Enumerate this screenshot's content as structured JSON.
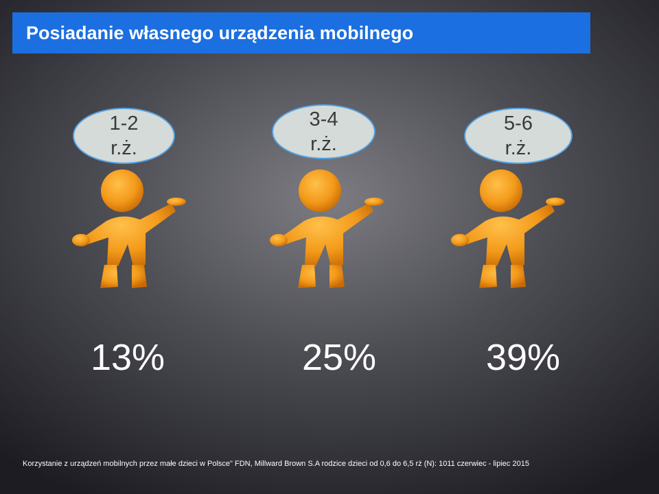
{
  "title": "Posiadanie własnego urządzenia mobilnego",
  "groups": [
    {
      "age_line1": "1-2",
      "age_line2": "r.ż.",
      "percent": "13%"
    },
    {
      "age_line1": "3-4",
      "age_line2": "r.ż.",
      "percent": "25%"
    },
    {
      "age_line1": "5-6",
      "age_line2": "r.ż.",
      "percent": "39%"
    }
  ],
  "figure_icon": "orange-person-presenting-icon",
  "colors": {
    "title_bar": "#1b6fe0",
    "figure": "#f39a1a",
    "bubble": "#d4dbd8",
    "bubble_border": "#54a1e2"
  },
  "footer": "Korzystanie z urządzeń mobilnych przez małe dzieci w Polsce\" FDN, Millward Brown S.A rodzice dzieci od 0,6 do 6,5 rż (N): 1011 czerwiec - lipiec 2015"
}
